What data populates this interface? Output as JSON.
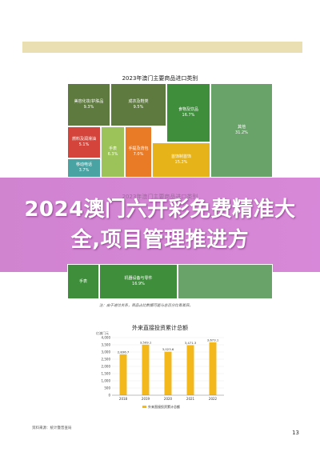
{
  "treemap": {
    "title": "2023年澳门主要商品进口类别",
    "cells": [
      {
        "label": "美容化妆/护肤品",
        "value": "9.3%",
        "color": "#5e7a3e"
      },
      {
        "label": "成衣及鞋类",
        "value": "9.5%",
        "color": "#5e7a3e"
      },
      {
        "label": "食物及饮品",
        "value": "16.7%",
        "color": "#3f8e3c"
      },
      {
        "label": "其他",
        "value": "31.2%",
        "color": "#6aa36a"
      },
      {
        "label": "燃料及润滑油",
        "value": "5.1%",
        "color": "#d5443a"
      },
      {
        "label": "手表",
        "value": "6.3%",
        "color": "#9cc35a"
      },
      {
        "label": "手提及背包",
        "value": "7.0%",
        "color": "#ea7b26"
      },
      {
        "label": "首饰制首饰",
        "value": "15.2%",
        "color": "#e6b318"
      },
      {
        "label": "移动电话",
        "value": "3.7%",
        "color": "#4aa3a3"
      }
    ],
    "ghost_title": "2023年澳门主要商品进口类别",
    "lower_cells": [
      {
        "label": "手表",
        "value": "",
        "color": "#3f8e3c"
      },
      {
        "label": "机器设备与零件",
        "value": "16.9%",
        "color": "#3f8e3c"
      }
    ],
    "note": "注：由于进位关系，商品占比数据可能与总百分比有差异。"
  },
  "banner": {
    "text": "2024澳门六开彩免费精准大全,项目管理推进方"
  },
  "chart_data": {
    "type": "bar",
    "title": "外来直接投资累计总额",
    "ylabel": "亿澳门元",
    "categories": [
      "2018",
      "2019",
      "2020",
      "2021",
      "2022"
    ],
    "values": [
      2836.7,
      3509.1,
      3023.6,
      3471.3,
      3673.1
    ],
    "value_labels": [
      "2,836.7",
      "3,509.1",
      "3,023.6",
      "3,471.3",
      "3,673.1"
    ],
    "yticks": [
      "0",
      "500",
      "1,000",
      "1,500",
      "2,000",
      "2,500",
      "3,000",
      "3,500",
      "4,000"
    ],
    "ylim": [
      0,
      4000
    ],
    "legend": "外来直接投资累计总额",
    "legend_position": "bottom",
    "bar_color": "#f2b81c"
  },
  "source_note": "资料来源：统计暨普查局",
  "page_number": "13"
}
